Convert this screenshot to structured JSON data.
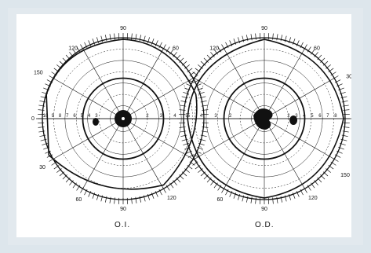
{
  "colors": {
    "background": "#dde6ec",
    "paper": "#ffffff",
    "ink": "#111111"
  },
  "charts": [
    {
      "eye_label": "O.I.",
      "angle_labels": {
        "top": "90",
        "upper_left": "120",
        "upper_right": "60",
        "far_upper_left": "150",
        "left": "0",
        "lower_left": "30",
        "bottom_left": "60",
        "bottom": "90",
        "bottom_right": "120"
      },
      "radial_scale_left": [
        "10",
        "9",
        "8",
        "7",
        "6",
        "5",
        "4",
        "3"
      ],
      "radial_scale_right": [
        "2",
        "3",
        "4",
        "5"
      ]
    },
    {
      "eye_label": "O.D.",
      "angle_labels": {
        "top": "90",
        "upper_left": "120",
        "upper_right": "60",
        "far_upper_right": "30",
        "right": "0",
        "lower_right": "150",
        "bottom_left": "60",
        "bottom": "90",
        "bottom_right": "120"
      },
      "radial_scale_left": [
        "5",
        "4",
        "3",
        "2"
      ],
      "radial_scale_right": [
        "2",
        "3",
        "4",
        "5",
        "6",
        "7",
        "8"
      ]
    }
  ]
}
